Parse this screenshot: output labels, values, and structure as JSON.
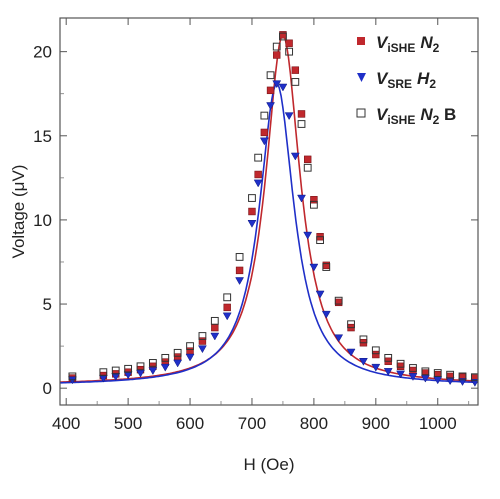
{
  "chart_data": {
    "type": "scatter",
    "title": "",
    "xlabel": "H (Oe)",
    "ylabel": "Voltage (μV)",
    "xlim": [
      390,
      1065
    ],
    "ylim": [
      -1,
      22
    ],
    "x_ticks": [
      400,
      500,
      600,
      700,
      800,
      900,
      1000
    ],
    "y_ticks": [
      0,
      5,
      10,
      15,
      20
    ],
    "grid": false,
    "legend_position": "top-right",
    "series": [
      {
        "name": "V_iSHE N_2",
        "legend_main": "V",
        "legend_sub": "iSHE",
        "legend_tail_main": "N",
        "legend_tail_sub": "2",
        "legend_tail_extra": "",
        "marker": "filled-square",
        "color": "#c0282d",
        "fit": true,
        "x": [
          410,
          460,
          480,
          500,
          520,
          540,
          560,
          580,
          600,
          620,
          640,
          660,
          680,
          700,
          710,
          720,
          730,
          740,
          750,
          760,
          770,
          780,
          790,
          800,
          810,
          820,
          840,
          860,
          880,
          900,
          920,
          940,
          960,
          980,
          1000,
          1020,
          1040,
          1060
        ],
        "y": [
          0.6,
          0.75,
          0.85,
          0.95,
          1.1,
          1.3,
          1.55,
          1.85,
          2.2,
          2.8,
          3.6,
          4.8,
          7.0,
          10.5,
          12.7,
          15.2,
          17.7,
          19.8,
          21.0,
          20.5,
          18.9,
          16.3,
          13.6,
          11.2,
          9.0,
          7.3,
          5.1,
          3.6,
          2.7,
          2.0,
          1.6,
          1.3,
          1.05,
          0.9,
          0.8,
          0.7,
          0.65,
          0.6
        ]
      },
      {
        "name": "V_SRE H_2",
        "legend_main": "V",
        "legend_sub": "SRE",
        "legend_tail_main": "H",
        "legend_tail_sub": "2",
        "legend_tail_extra": "",
        "marker": "filled-triangle-down",
        "color": "#1f2fc8",
        "fit": true,
        "x": [
          410,
          460,
          480,
          500,
          520,
          540,
          560,
          580,
          600,
          620,
          640,
          660,
          680,
          700,
          710,
          720,
          730,
          740,
          750,
          760,
          770,
          780,
          790,
          800,
          810,
          820,
          840,
          860,
          880,
          900,
          920,
          940,
          960,
          980,
          1000,
          1020,
          1040,
          1060
        ],
        "y": [
          0.5,
          0.6,
          0.7,
          0.8,
          0.9,
          1.05,
          1.25,
          1.5,
          1.85,
          2.35,
          3.1,
          4.3,
          6.4,
          9.8,
          12.2,
          14.7,
          16.8,
          18.1,
          17.9,
          16.2,
          13.8,
          11.3,
          9.1,
          7.2,
          5.6,
          4.4,
          3.0,
          2.15,
          1.6,
          1.25,
          1.0,
          0.85,
          0.7,
          0.6,
          0.5,
          0.45,
          0.4,
          0.35
        ]
      },
      {
        "name": "V_iSHE N_2 B",
        "legend_main": "V",
        "legend_sub": "iSHE",
        "legend_tail_main": "N",
        "legend_tail_sub": "2",
        "legend_tail_extra": " B",
        "marker": "open-square",
        "color": "#333333",
        "fit": false,
        "x": [
          410,
          460,
          480,
          500,
          520,
          540,
          560,
          580,
          600,
          620,
          640,
          660,
          680,
          700,
          710,
          720,
          730,
          740,
          750,
          760,
          770,
          780,
          790,
          800,
          810,
          820,
          840,
          860,
          880,
          900,
          920,
          940,
          960,
          980,
          1000,
          1020,
          1040,
          1060
        ],
        "y": [
          0.7,
          0.95,
          1.05,
          1.15,
          1.3,
          1.5,
          1.8,
          2.1,
          2.5,
          3.1,
          4.0,
          5.4,
          7.8,
          11.3,
          13.7,
          16.2,
          18.6,
          20.3,
          20.9,
          20.0,
          18.2,
          15.7,
          13.1,
          10.9,
          8.8,
          7.2,
          5.2,
          3.8,
          2.9,
          2.25,
          1.8,
          1.45,
          1.2,
          1.0,
          0.9,
          0.8,
          0.7,
          0.65
        ]
      }
    ]
  }
}
